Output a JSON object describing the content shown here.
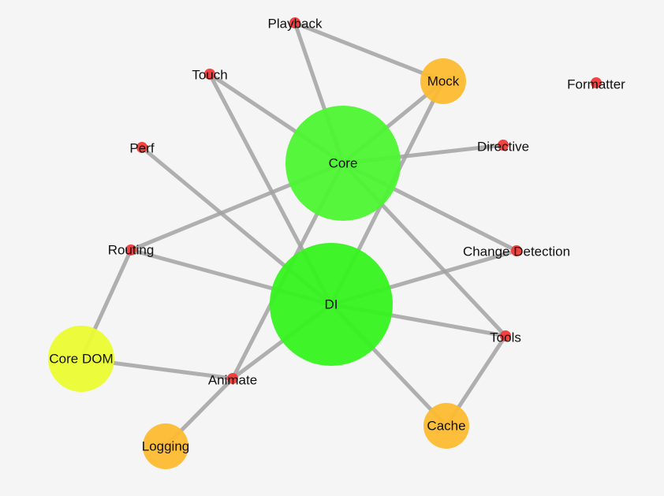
{
  "graph": {
    "nodes": [
      {
        "id": "core",
        "label": "Core",
        "color": "#4cf531"
      },
      {
        "id": "di",
        "label": "DI",
        "color": "#36f31f"
      },
      {
        "id": "mock",
        "label": "Mock",
        "color": "#fdba30"
      },
      {
        "id": "cache",
        "label": "Cache",
        "color": "#fdba30"
      },
      {
        "id": "logging",
        "label": "Logging",
        "color": "#fdba30"
      },
      {
        "id": "core-dom",
        "label": "Core DOM",
        "color": "#ebfc33"
      },
      {
        "id": "playback",
        "label": "Playback",
        "color": "#f23a3a"
      },
      {
        "id": "touch",
        "label": "Touch",
        "color": "#f23a3a"
      },
      {
        "id": "perf",
        "label": "Perf",
        "color": "#f23a3a"
      },
      {
        "id": "routing",
        "label": "Routing",
        "color": "#f23a3a"
      },
      {
        "id": "animate",
        "label": "Animate",
        "color": "#f23a3a"
      },
      {
        "id": "directive",
        "label": "Directive",
        "color": "#f23a3a"
      },
      {
        "id": "change-detection",
        "label": "Change Detection",
        "color": "#f23a3a"
      },
      {
        "id": "tools",
        "label": "Tools",
        "color": "#f23a3a"
      },
      {
        "id": "formatter",
        "label": "Formatter",
        "color": "#f23a3a"
      }
    ],
    "edges": [
      [
        "playback",
        "core"
      ],
      [
        "playback",
        "mock"
      ],
      [
        "touch",
        "core"
      ],
      [
        "touch",
        "di"
      ],
      [
        "mock",
        "core"
      ],
      [
        "mock",
        "di"
      ],
      [
        "perf",
        "di"
      ],
      [
        "core",
        "directive"
      ],
      [
        "core",
        "routing"
      ],
      [
        "core",
        "change-detection"
      ],
      [
        "core",
        "tools"
      ],
      [
        "core",
        "animate"
      ],
      [
        "routing",
        "di"
      ],
      [
        "routing",
        "core-dom"
      ],
      [
        "di",
        "change-detection"
      ],
      [
        "di",
        "tools"
      ],
      [
        "di",
        "cache"
      ],
      [
        "di",
        "animate"
      ],
      [
        "core-dom",
        "animate"
      ],
      [
        "animate",
        "logging"
      ],
      [
        "tools",
        "cache"
      ]
    ]
  }
}
